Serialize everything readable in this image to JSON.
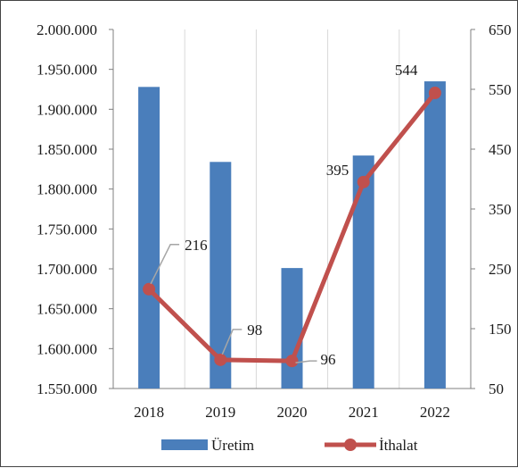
{
  "chart_data": {
    "type": "bar+line",
    "categories": [
      "2018",
      "2019",
      "2020",
      "2021",
      "2022"
    ],
    "series": [
      {
        "name": "Üretim",
        "type": "bar",
        "axis": "left",
        "color": "#4a7ebb",
        "values": [
          1928000,
          1834000,
          1701000,
          1842000,
          1935000
        ]
      },
      {
        "name": "İthalat",
        "type": "line",
        "axis": "right",
        "color": "#c0504d",
        "values": [
          216,
          98,
          96,
          395,
          544
        ],
        "data_labels": [
          "216",
          "98",
          "96",
          "395",
          "544"
        ]
      }
    ],
    "y_left": {
      "min": 1550000,
      "max": 2000000,
      "step": 50000,
      "tick_labels": [
        "1.550.000",
        "1.600.000",
        "1.650.000",
        "1.700.000",
        "1.750.000",
        "1.800.000",
        "1.850.000",
        "1.900.000",
        "1.950.000",
        "2.000.000"
      ]
    },
    "y_right": {
      "min": 50,
      "max": 650,
      "step": 100,
      "tick_labels": [
        "50",
        "150",
        "250",
        "350",
        "450",
        "550",
        "650"
      ]
    },
    "grid": "vertical",
    "legend": "bottom"
  }
}
